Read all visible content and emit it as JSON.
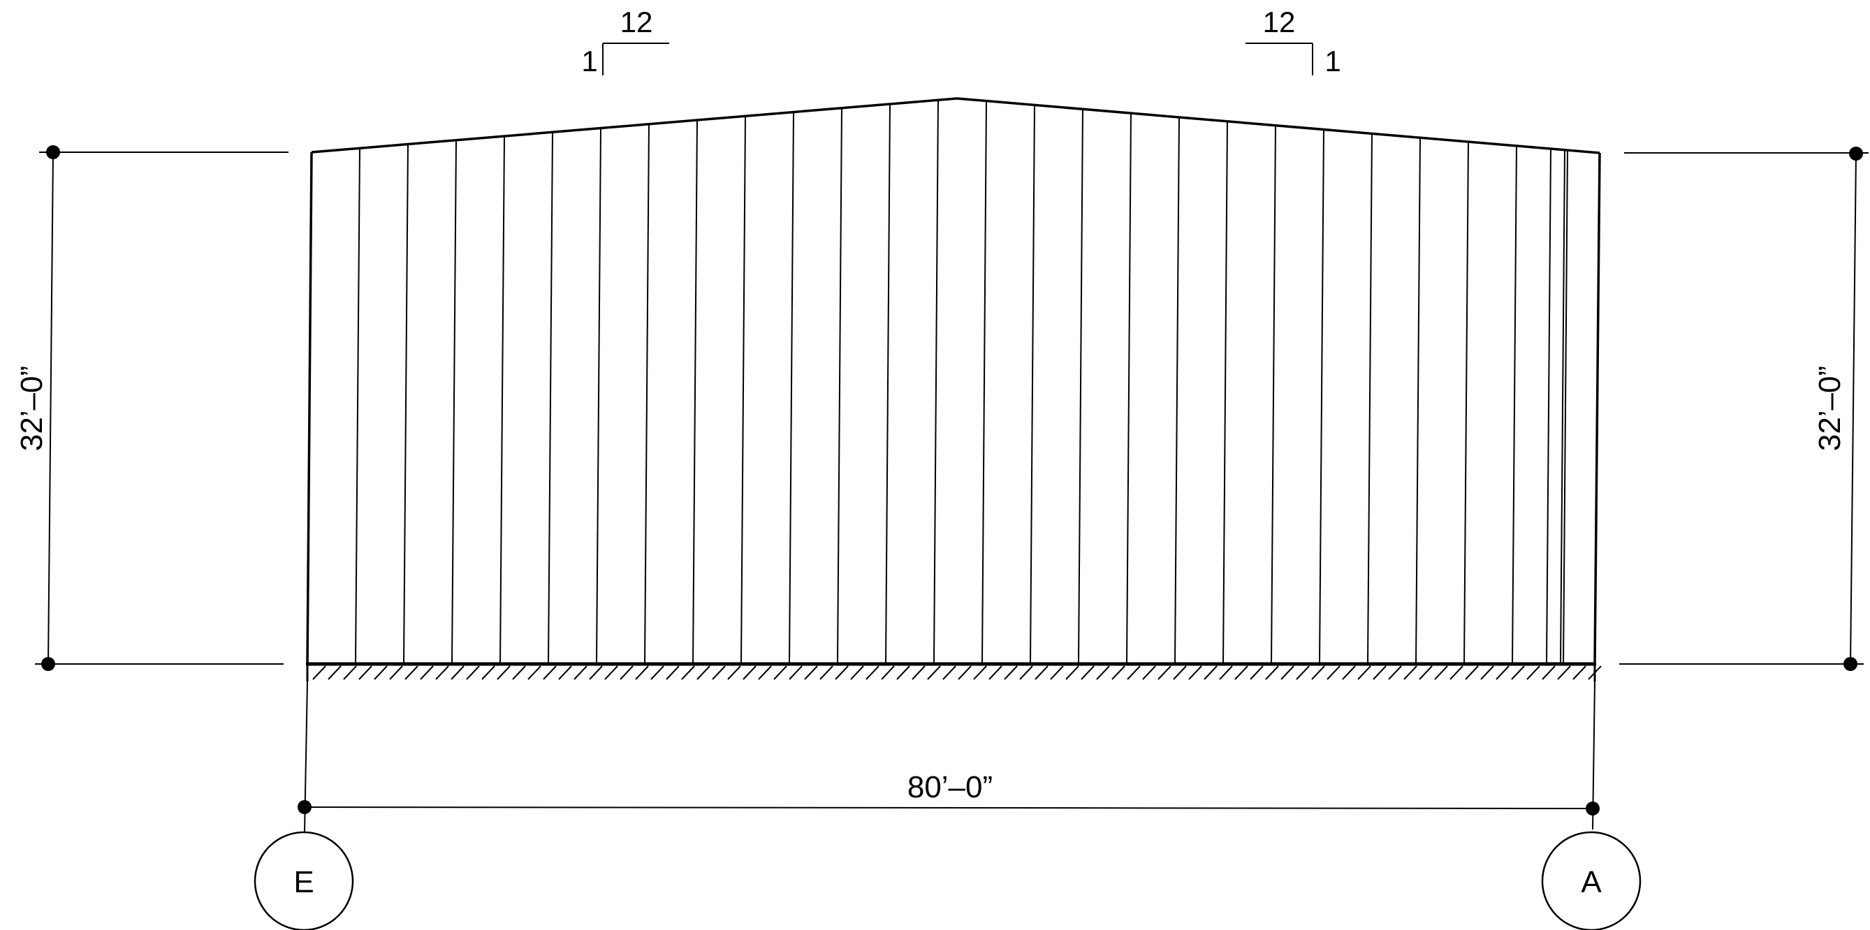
{
  "dimensions": {
    "height_left": "32’–0”",
    "height_right": "32’–0”",
    "width_bottom": "80’–0”"
  },
  "slope_left": {
    "run": "12",
    "rise": "1"
  },
  "slope_right": {
    "run": "12",
    "rise": "1"
  },
  "grid_bubbles": {
    "left": "E",
    "right": "A"
  },
  "colors": {
    "line": "#000000",
    "background": "#ffffff"
  }
}
